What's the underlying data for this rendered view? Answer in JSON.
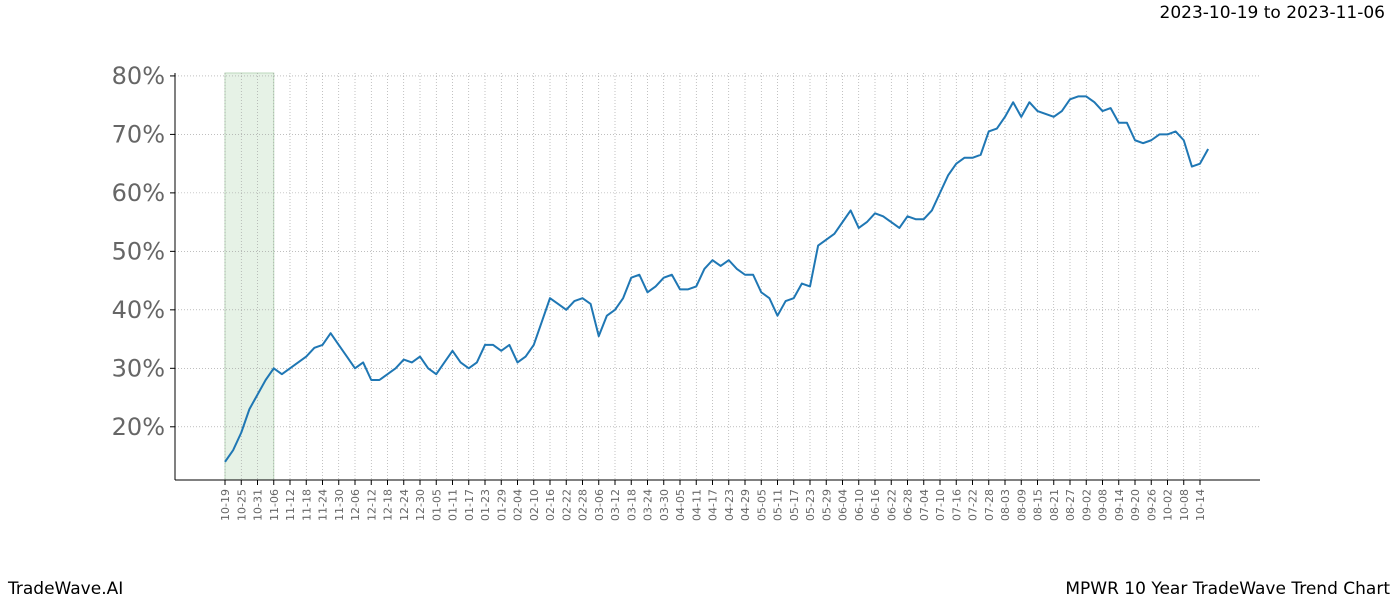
{
  "header": {
    "date_range": "2023-10-19 to 2023-11-06"
  },
  "footer": {
    "brand": "TradeWave.AI",
    "chart_name": "MPWR 10 Year TradeWave Trend Chart"
  },
  "chart_data": {
    "type": "line",
    "categories": [
      "10-19",
      null,
      "10-25",
      null,
      "10-31",
      null,
      "11-06",
      null,
      "11-12",
      null,
      "11-18",
      null,
      "11-24",
      null,
      "11-30",
      null,
      "12-06",
      null,
      "12-12",
      null,
      "12-18",
      null,
      "12-24",
      null,
      "12-30",
      null,
      "01-05",
      null,
      "01-11",
      null,
      "01-17",
      null,
      "01-23",
      null,
      "01-29",
      null,
      "02-04",
      null,
      "02-10",
      null,
      "02-16",
      null,
      "02-22",
      null,
      "02-28",
      null,
      "03-06",
      null,
      "03-12",
      null,
      "03-18",
      null,
      "03-24",
      null,
      "03-30",
      null,
      "04-05",
      null,
      "04-11",
      null,
      "04-17",
      null,
      "04-23",
      null,
      "04-29",
      null,
      "05-05",
      null,
      "05-11",
      null,
      "05-17",
      null,
      "05-23",
      null,
      "05-29",
      null,
      "06-04",
      null,
      "06-10",
      null,
      "06-16",
      null,
      "06-22",
      null,
      "06-28",
      null,
      "07-04",
      null,
      "07-10",
      null,
      "07-16",
      null,
      "07-22",
      null,
      "07-28",
      null,
      "08-03",
      null,
      "08-09",
      null,
      "08-15",
      null,
      "08-21",
      null,
      "08-27",
      null,
      "09-02",
      null,
      "09-08",
      null,
      "09-14",
      null,
      "09-20",
      null,
      "09-26",
      null,
      "10-02",
      null,
      "10-08",
      null,
      "10-14",
      null
    ],
    "series": [
      {
        "color": "#1f77b4",
        "values": [
          14,
          16,
          19,
          23,
          25.5,
          28,
          30,
          29,
          30,
          31,
          32,
          33.5,
          34,
          36,
          34,
          32,
          30,
          31,
          28,
          28,
          29,
          30,
          31.5,
          31,
          32,
          30,
          29,
          31,
          33,
          31,
          30,
          31,
          34,
          34,
          33,
          34,
          31,
          32,
          34,
          38,
          42,
          41,
          40,
          41.5,
          42,
          41,
          35.5,
          39,
          40,
          42,
          45.5,
          46,
          43,
          44,
          45.5,
          46,
          43.5,
          43.5,
          44,
          47,
          48.5,
          47.5,
          48.5,
          47,
          46,
          46,
          43,
          42,
          39,
          41.5,
          42,
          44.5,
          44,
          51,
          52,
          53,
          55,
          57,
          54,
          55,
          56.5,
          56,
          55,
          54,
          56,
          55.5,
          55.5,
          57,
          60,
          63,
          65,
          66,
          66,
          66.5,
          70.5,
          71,
          73,
          75.5,
          73,
          75.5,
          74,
          73.5,
          73,
          74,
          76,
          76.5,
          76.5,
          75.5,
          74,
          74.5,
          72,
          72,
          69,
          68.5,
          69,
          70,
          70,
          70.5,
          69,
          64.5,
          65,
          67.5
        ]
      }
    ],
    "ylim": [
      10.9,
      80.5
    ],
    "yticks": [
      {
        "value": 20,
        "label": "20%"
      },
      {
        "value": 30,
        "label": "30%"
      },
      {
        "value": 40,
        "label": "40%"
      },
      {
        "value": 50,
        "label": "50%"
      },
      {
        "value": 60,
        "label": "60%"
      },
      {
        "value": 70,
        "label": "70%"
      },
      {
        "value": 80,
        "label": "80%"
      }
    ],
    "grid": true
  }
}
